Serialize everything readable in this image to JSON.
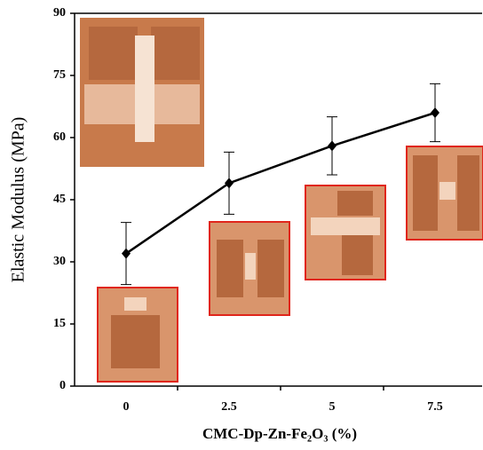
{
  "chart_data": {
    "type": "line",
    "x_label": "CMC-Dp-Zn-Fe₂O₃ (%)",
    "y_label": "Elastic Modulus (MPa)",
    "categories": [
      "0",
      "2.5",
      "5",
      "7.5"
    ],
    "series": [
      {
        "color": "#000000",
        "values": [
          32,
          49,
          58,
          66
        ],
        "errors": [
          7.5,
          7.5,
          7,
          7
        ]
      }
    ],
    "ylim": [
      0,
      90
    ],
    "yticks": [
      0,
      15,
      30,
      45,
      60,
      75,
      90
    ]
  }
}
